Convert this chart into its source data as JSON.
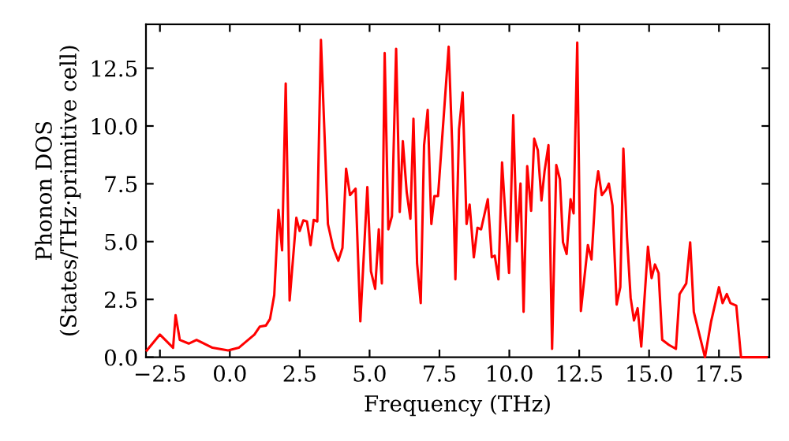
{
  "chart_data": {
    "type": "line",
    "xlabel": "Frequency (THz)",
    "ylabel": "Phonon DOS\n(States/THz·primitive cell)",
    "xlim": [
      -3.0,
      19.3
    ],
    "ylim": [
      0,
      14.4
    ],
    "xticks": [
      {
        "value": -2.5,
        "label": "−2.5"
      },
      {
        "value": 0,
        "label": "0.0"
      },
      {
        "value": 2.5,
        "label": "2.5"
      },
      {
        "value": 5,
        "label": "5.0"
      },
      {
        "value": 7.5,
        "label": "7.5"
      },
      {
        "value": 10,
        "label": "10.0"
      },
      {
        "value": 12.5,
        "label": "12.5"
      },
      {
        "value": 15,
        "label": "15.0"
      },
      {
        "value": 17.5,
        "label": "17.5"
      }
    ],
    "yticks": [
      {
        "value": 0,
        "label": "0.0"
      },
      {
        "value": 2.5,
        "label": "2.5"
      },
      {
        "value": 5,
        "label": "5.0"
      },
      {
        "value": 7.5,
        "label": "7.5"
      },
      {
        "value": 10,
        "label": "10.0"
      },
      {
        "value": 12.5,
        "label": "12.5"
      }
    ],
    "grid": false,
    "marker": "none",
    "line_style": "solid",
    "series": [
      {
        "color": "#ff0000",
        "x": [
          -2.97,
          -2.5,
          -2.12,
          -2.03,
          -1.94,
          -1.79,
          -1.47,
          -1.19,
          -0.62,
          -0.06,
          0.32,
          0.88,
          1.07,
          1.29,
          1.44,
          1.59,
          1.74,
          1.87,
          2.0,
          2.14,
          2.38,
          2.5,
          2.63,
          2.76,
          2.89,
          3.0,
          3.13,
          3.26,
          3.51,
          3.7,
          3.88,
          4.03,
          4.16,
          4.3,
          4.5,
          4.67,
          4.92,
          5.05,
          5.2,
          5.33,
          5.44,
          5.54,
          5.67,
          5.8,
          5.95,
          6.08,
          6.19,
          6.33,
          6.46,
          6.57,
          6.7,
          6.83,
          6.95,
          7.08,
          7.21,
          7.32,
          7.45,
          7.83,
          7.96,
          8.07,
          8.2,
          8.33,
          8.47,
          8.58,
          8.73,
          8.86,
          8.99,
          9.23,
          9.37,
          9.48,
          9.61,
          9.74,
          9.99,
          10.14,
          10.27,
          10.4,
          10.51,
          10.64,
          10.78,
          10.89,
          11.02,
          11.15,
          11.26,
          11.4,
          11.53,
          11.68,
          11.81,
          11.92,
          12.05,
          12.19,
          12.3,
          12.43,
          12.56,
          12.81,
          12.94,
          13.09,
          13.18,
          13.31,
          13.46,
          13.56,
          13.69,
          13.84,
          13.97,
          14.08,
          14.21,
          14.34,
          14.46,
          14.59,
          14.72,
          14.96,
          15.09,
          15.21,
          15.34,
          15.47,
          15.71,
          15.96,
          16.09,
          16.33,
          16.47,
          16.6,
          17.0,
          17.22,
          17.5,
          17.63,
          17.78,
          17.91,
          18.12,
          18.29,
          19.2
        ],
        "values": [
          0.29,
          0.98,
          0.52,
          0.41,
          1.82,
          0.75,
          0.59,
          0.75,
          0.41,
          0.29,
          0.41,
          0.98,
          1.32,
          1.37,
          1.66,
          2.69,
          6.37,
          4.62,
          11.84,
          2.46,
          6.03,
          5.46,
          5.92,
          5.87,
          4.85,
          5.94,
          5.87,
          13.73,
          5.76,
          4.73,
          4.17,
          4.73,
          8.15,
          7.01,
          7.29,
          1.55,
          7.36,
          3.71,
          2.96,
          5.53,
          3.19,
          13.16,
          5.53,
          6.1,
          13.34,
          6.28,
          9.34,
          7.12,
          5.99,
          10.31,
          4.05,
          2.34,
          9.17,
          10.7,
          5.76,
          6.97,
          6.97,
          13.43,
          9.06,
          3.37,
          9.86,
          11.45,
          5.76,
          6.6,
          4.32,
          5.6,
          5.53,
          6.83,
          4.32,
          4.39,
          3.37,
          8.42,
          3.64,
          10.47,
          5.01,
          7.51,
          1.96,
          8.26,
          6.33,
          9.45,
          8.95,
          6.78,
          8.04,
          9.17,
          0.36,
          8.31,
          7.7,
          4.97,
          4.46,
          6.83,
          6.22,
          13.61,
          2.0,
          4.85,
          4.23,
          7.24,
          8.04,
          7.01,
          7.24,
          7.51,
          6.56,
          2.28,
          3.03,
          9.02,
          5.19,
          2.57,
          1.59,
          2.12,
          0.46,
          4.78,
          3.42,
          4.01,
          3.64,
          0.75,
          0.53,
          0.36,
          2.73,
          3.19,
          4.97,
          1.96,
          0.0,
          1.55,
          3.03,
          2.34,
          2.73,
          2.34,
          2.23,
          0.0,
          0.0
        ]
      }
    ]
  }
}
